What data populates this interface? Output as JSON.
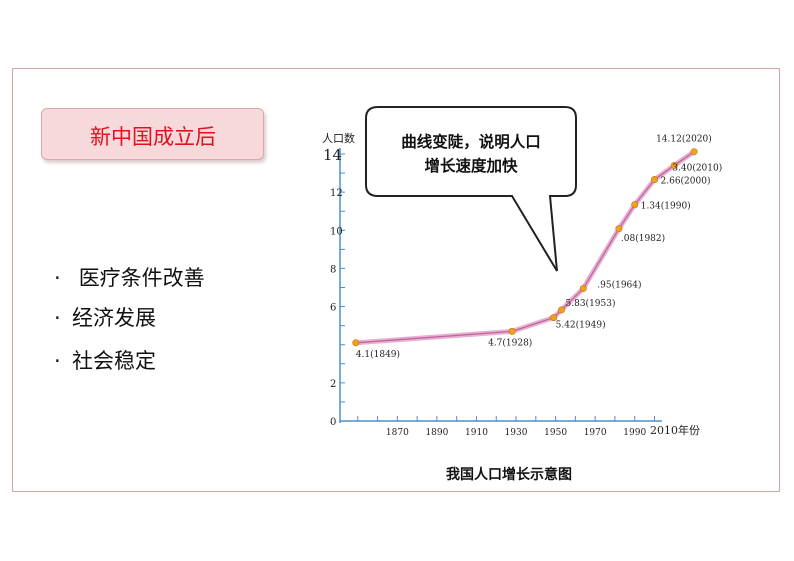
{
  "title": "新中国成立后",
  "bullets": [
    "医疗条件改善",
    "经济发展",
    "社会稳定"
  ],
  "callout": {
    "line1": "曲线变陡，说明人口",
    "line2": "增长速度加快"
  },
  "caption": "我国人口增长示意图",
  "chart_data": {
    "type": "line",
    "ylabel": "人口数",
    "xlabel": "2010年份",
    "x_ticks": [
      "1870",
      "1890",
      "1910",
      "1930",
      "1950",
      "1970",
      "1990"
    ],
    "y_ticks": [
      "14",
      "12",
      "10",
      "8",
      "6",
      "2",
      "0"
    ],
    "xlim": [
      1840,
      2023
    ],
    "ylim": [
      0,
      14
    ],
    "series": [
      {
        "color": "#d8a4c8",
        "points": [
          {
            "x": 1849,
            "y": 4.1,
            "label": "4.1(1849)"
          },
          {
            "x": 1928,
            "y": 4.7,
            "label": "4.7(1928)"
          },
          {
            "x": 1949,
            "y": 5.42,
            "label": "5.42(1949)"
          },
          {
            "x": 1953,
            "y": 5.83,
            "label": "5.83(1953)"
          },
          {
            "x": 1964,
            "y": 6.95,
            "label": ".95(1964)"
          },
          {
            "x": 1982,
            "y": 10.08,
            "label": ".08(1982)"
          },
          {
            "x": 1990,
            "y": 11.34,
            "label": "1.34(1990)"
          },
          {
            "x": 2000,
            "y": 12.66,
            "label": "2.66(2000)"
          },
          {
            "x": 2010,
            "y": 13.4,
            "label": "3.40(2010)"
          },
          {
            "x": 2020,
            "y": 14.12,
            "label": "14.12(2020)"
          }
        ]
      }
    ],
    "grid": false
  }
}
